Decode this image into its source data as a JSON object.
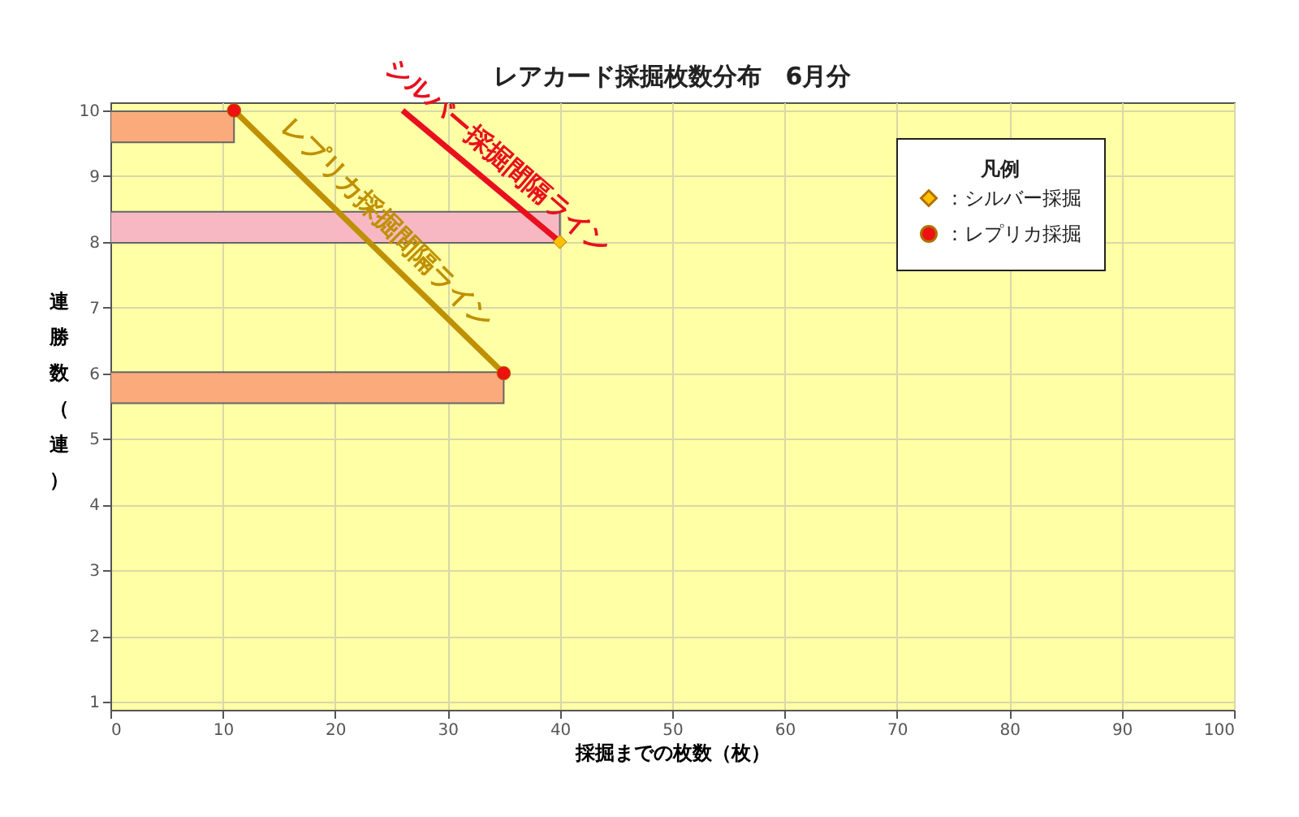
{
  "chart_data": {
    "type": "bar",
    "title": "レアカード採掘枚数分布　6月分",
    "xlabel": "採掘までの枚数（枚）",
    "ylabel": "連勝数（連）",
    "legend_title": "凡例",
    "xlim": [
      0,
      100
    ],
    "ylim": [
      1,
      10
    ],
    "xticks": [
      0,
      10,
      20,
      30,
      40,
      50,
      60,
      70,
      80,
      90,
      100
    ],
    "yticks": [
      1,
      2,
      3,
      4,
      5,
      6,
      7,
      8,
      9,
      10
    ],
    "grid": true,
    "legend": "top right",
    "orientation": "horizontal",
    "series": [
      {
        "x": [
          9.75,
          8.22,
          5.78
        ],
        "values": [
          11,
          40,
          35
        ],
        "colors": [
          "#fbaa7c",
          "#f7b8c4",
          "#fbaa7c"
        ]
      },
      {
        "type": "line",
        "name": "レプリカ採掘間隔ライン",
        "color": "#bf9000",
        "x": [
          10,
          6
        ],
        "values": [
          11,
          35
        ]
      },
      {
        "type": "line",
        "name": "シルバー採掘間隔ライン",
        "color": "#e8101e",
        "x": [
          10,
          8
        ],
        "values": [
          26,
          40
        ]
      },
      {
        "type": "scatter",
        "name": "：シルバー採掘",
        "marker": "diamond",
        "color": "#ffc000",
        "x": [
          8
        ],
        "values": [
          40
        ]
      },
      {
        "type": "scatter",
        "name": "：レプリカ採掘",
        "marker": "circle",
        "color": "#ee1111",
        "x": [
          10,
          6
        ],
        "values": [
          11,
          35
        ]
      }
    ]
  }
}
